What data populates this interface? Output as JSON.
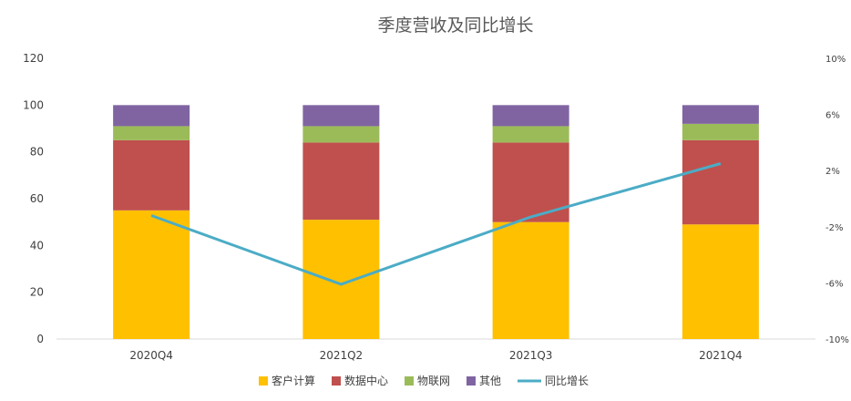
{
  "chart_data": {
    "type": "bar",
    "stacked": true,
    "title": "季度营收及同比增长",
    "categories": [
      "2020Q4",
      "2021Q2",
      "2021Q3",
      "2021Q4"
    ],
    "series": [
      {
        "name": "客户计算",
        "type": "bar",
        "axis": "left",
        "color": "#FFC000",
        "values": [
          55,
          51,
          50,
          49
        ]
      },
      {
        "name": "数据中心",
        "type": "bar",
        "axis": "left",
        "color": "#C0504D",
        "values": [
          30,
          33,
          34,
          36
        ]
      },
      {
        "name": "物联网",
        "type": "bar",
        "axis": "left",
        "color": "#9BBB59",
        "values": [
          6,
          7,
          7,
          7
        ]
      },
      {
        "name": "其他",
        "type": "bar",
        "axis": "left",
        "color": "#8064A2",
        "values": [
          9,
          9,
          9,
          8
        ]
      },
      {
        "name": "同比增长",
        "type": "line",
        "axis": "right",
        "color": "#4BACC6",
        "values": [
          -1.2,
          -6.1,
          -1.3,
          2.5
        ]
      }
    ],
    "yaxis_left": {
      "ylim": [
        0,
        120
      ],
      "ticks": [
        "0",
        "20",
        "40",
        "60",
        "80",
        "100",
        "120"
      ]
    },
    "yaxis_right": {
      "ylim": [
        -10,
        10
      ],
      "ticks": [
        "-10%",
        "-6%",
        "-2%",
        "2%",
        "6%",
        "10%"
      ]
    },
    "grid": false,
    "legend": "bottom"
  }
}
